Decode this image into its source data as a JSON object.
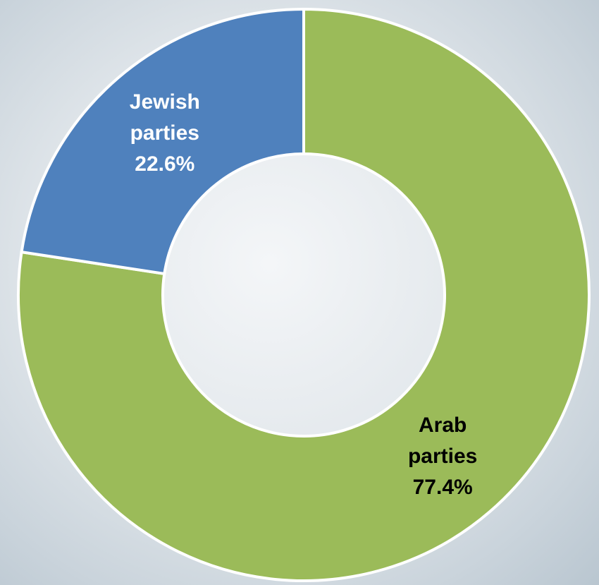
{
  "chart_data": {
    "type": "donut",
    "categories": [
      "Arab parties",
      "Jewish parties"
    ],
    "values": [
      77.4,
      22.6
    ],
    "value_labels": [
      "77.4%",
      "22.6%"
    ],
    "colors": [
      "#9bbb59",
      "#4f81bd"
    ],
    "label_colors": [
      "#000000",
      "#ffffff"
    ]
  }
}
